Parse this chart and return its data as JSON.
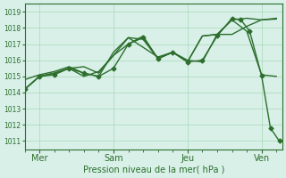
{
  "bg_color": "#d8f0e8",
  "grid_color": "#a8d8b8",
  "line_color": "#2d6e2d",
  "xlabel": "Pression niveau de la mer( hPa )",
  "yticks": [
    1011,
    1012,
    1013,
    1014,
    1015,
    1016,
    1017,
    1018,
    1019
  ],
  "ylim": [
    1010.5,
    1019.5
  ],
  "xtick_labels": [
    "Mer",
    "Sam",
    "Jeu",
    "Ven"
  ],
  "xtick_positions": [
    0.5,
    3.0,
    5.5,
    8.0
  ],
  "xlim": [
    0.0,
    8.7
  ],
  "series1_x": [
    0.0,
    0.5,
    1.0,
    1.5,
    2.0,
    2.5,
    3.0,
    3.5,
    4.0,
    4.5,
    5.0,
    5.5,
    6.0,
    6.5,
    7.0,
    7.5,
    8.0,
    8.5
  ],
  "series1_y": [
    1014.2,
    1015.0,
    1015.2,
    1015.5,
    1015.6,
    1015.2,
    1016.3,
    1017.0,
    1017.5,
    1016.1,
    1016.5,
    1016.0,
    1015.9,
    1017.6,
    1017.6,
    1018.1,
    1018.5,
    1018.55
  ],
  "series2_x": [
    0.0,
    0.5,
    1.0,
    1.5,
    2.0,
    2.5,
    3.0,
    3.5,
    4.0,
    4.5,
    5.0,
    5.5,
    6.0,
    6.5,
    7.0,
    7.5,
    8.0,
    8.5
  ],
  "series2_y": [
    1014.8,
    1015.1,
    1015.3,
    1015.6,
    1015.2,
    1015.0,
    1016.5,
    1017.4,
    1016.8,
    1016.2,
    1016.5,
    1015.9,
    1017.5,
    1017.6,
    1018.5,
    1018.6,
    1018.5,
    1018.6
  ],
  "series3_x": [
    0.0,
    0.5,
    1.0,
    1.5,
    2.0,
    2.5,
    3.0,
    3.5,
    4.0,
    4.5,
    5.0,
    5.5,
    6.0,
    6.5,
    7.0,
    7.5,
    8.0,
    8.5
  ],
  "series3_y": [
    1014.2,
    1015.0,
    1015.2,
    1015.5,
    1015.0,
    1015.3,
    1016.3,
    1017.4,
    1017.3,
    1016.1,
    1016.5,
    1015.9,
    1017.5,
    1017.6,
    1018.5,
    1017.8,
    1015.1,
    1015.0
  ],
  "main_x": [
    0.0,
    0.5,
    1.0,
    1.5,
    2.0,
    2.5,
    3.0,
    3.5,
    4.0,
    4.5,
    5.0,
    5.5,
    6.0,
    6.5,
    7.0,
    7.3,
    7.6,
    8.0,
    8.3,
    8.6
  ],
  "main_y": [
    1014.2,
    1015.0,
    1015.1,
    1015.5,
    1015.2,
    1015.0,
    1015.5,
    1017.0,
    1017.4,
    1016.1,
    1016.5,
    1015.9,
    1016.0,
    1017.5,
    1018.6,
    1018.5,
    1017.8,
    1015.05,
    1011.8,
    1011.0
  ],
  "line_width": 1.0,
  "marker_size": 2.5
}
